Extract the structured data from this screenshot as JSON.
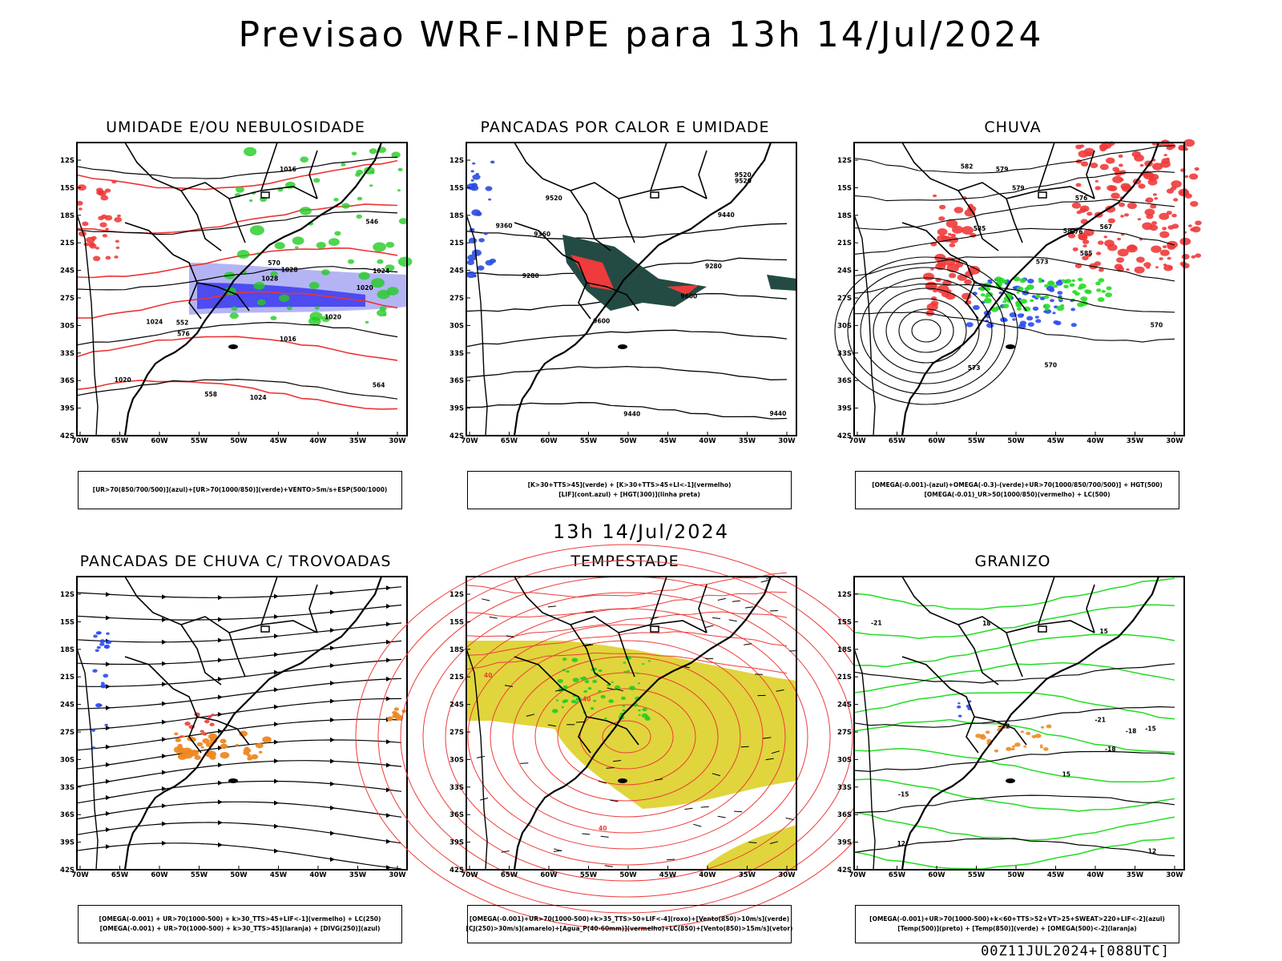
{
  "title": "Previsao WRF-INPE  para 13h 14/Jul/2024",
  "subtitle": "13h 14/Jul/2024",
  "footer": "00Z11JUL2024+[088UTC]",
  "lat_labels": [
    "12S",
    "15S",
    "18S",
    "21S",
    "24S",
    "27S",
    "30S",
    "33S",
    "36S",
    "39S",
    "42S"
  ],
  "lon_labels": [
    "70W",
    "65W",
    "60W",
    "55W",
    "50W",
    "45W",
    "40W",
    "35W",
    "30W"
  ],
  "panels": [
    {
      "title": "UMIDADE E/OU NEBULOSIDADE",
      "legend": [
        "[UR>70(850/700/500)](azul)+[UR>70(1000/850)](verde)+VENTO>5m/s+ESP(500/1000)"
      ],
      "labels": [
        "1016",
        "1020",
        "1024",
        "1028",
        "1024",
        "1020",
        "1016",
        "576",
        "570",
        "564",
        "558",
        "552",
        "546",
        "1028",
        "1024",
        "1020"
      ],
      "colors": {
        "blue": "#4c4cf0",
        "lightblue": "#b4b4f5",
        "green": "#22cc22",
        "red": "#ee3333"
      }
    },
    {
      "title": "PANCADAS POR CALOR E UMIDADE",
      "legend": [
        "[K>30+TTS>45](verde)  +  [K>30+TTS>45+LI<-1](vermelho)",
        "[LIF](cont.azul)  +  [HGT(300)](linha preta)"
      ],
      "labels": [
        "9600",
        "9520",
        "9440",
        "9360",
        "9280",
        "9600",
        "9520",
        "9440",
        "9360",
        "9280",
        "9520",
        "9440"
      ],
      "colors": {
        "darkgreen": "#234b44",
        "red": "#ee3b3b",
        "blue": "#2a4bdd"
      }
    },
    {
      "title": "CHUVA",
      "legend": [
        "[OMEGA(-0.001)-(azul)+OMEGA(-0.3)-(verde)+UR>70(1000/850/700/500)]  +  HGT(500)",
        "[OMEGA(-0.01)_UR>50(1000/850)(vermelho)  +  LC(500)"
      ],
      "labels": [
        "585",
        "582",
        "579",
        "576",
        "573",
        "570",
        "567",
        "576",
        "579",
        "582",
        "585",
        "573",
        "570"
      ],
      "colors": {
        "red": "#ee3b3b",
        "blue": "#2a4bee",
        "green": "#22dd22"
      }
    },
    {
      "title": "PANCADAS DE CHUVA C/ TROVOADAS",
      "legend": [
        "[OMEGA(-0.001) + UR>70(1000-500) + k>30_TTS>45+LIF<-1](vermelho) + LC(250)",
        "[OMEGA(-0.001) + UR>70(1000-500) + k>30_TTS>45](laranja) + [DIVG(250)](azul)"
      ],
      "labels": [],
      "colors": {
        "orange": "#ee8822",
        "blue": "#2a4bee",
        "red": "#ee3b3b"
      }
    },
    {
      "title": "TEMPESTADE",
      "legend": [
        "[OMEGA(-0.001)+UR>70(1000-500)+k>35_TTS>50+LIF<-4](roxo)+[Vento(850)>10m/s](verde)",
        "[CJ(250)>30m/s](amarelo)+[Agua_P(40-60mm)](vermelho)+LC(850)+[Vento(850)>15m/s](vetor)"
      ],
      "labels": [
        "40",
        "40",
        "40"
      ],
      "colors": {
        "yellow": "#e0d53c",
        "red": "#ee3b3b",
        "green": "#22cc22"
      }
    },
    {
      "title": "GRANIZO",
      "legend": [
        "[OMEGA(-0.001)+UR>70(1000-500)+k<60+TTS>52+VT>25+SWEAT>220+LIF<-2](azul)",
        "[Temp(500)](preto)  +  [Temp(850)](verde)  +  [OMEGA(500)<-2](laranja)"
      ],
      "labels": [
        "-12",
        "-15",
        "-18",
        "-21",
        "-15",
        "-18",
        "-21",
        "15",
        "18",
        "12",
        "12",
        "15"
      ],
      "colors": {
        "green": "#22dd22",
        "orange": "#ee8822",
        "blue": "#2a4bee"
      }
    }
  ]
}
